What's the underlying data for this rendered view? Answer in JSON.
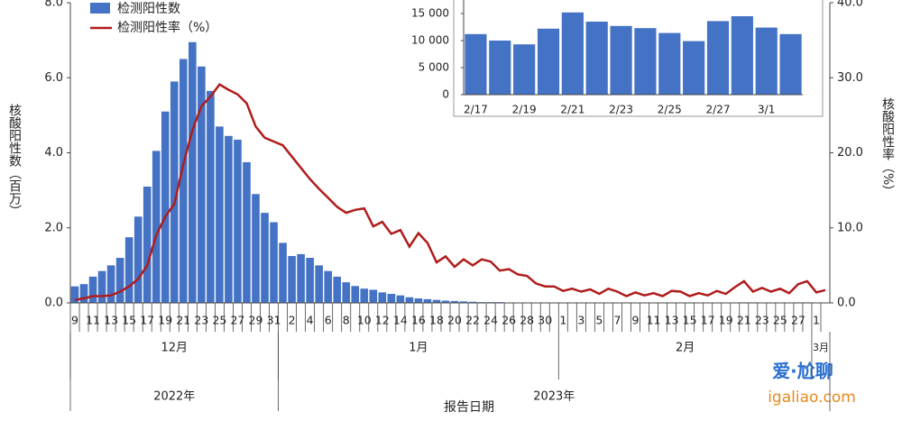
{
  "chart_data": [
    {
      "type": "combo",
      "legend": "top-left",
      "xlabel": "报告日期",
      "ylabel": "核酸阳性数（百万）",
      "y2label": "核酸阳性率（%）",
      "x_groups": [
        "12月",
        "1月",
        "2月",
        "3月"
      ],
      "x_years": [
        "2022年",
        "2023年"
      ],
      "categories": [
        "9",
        null,
        "11",
        null,
        "13",
        null,
        "15",
        null,
        "17",
        null,
        "19",
        null,
        "21",
        null,
        "23",
        null,
        "25",
        null,
        "27",
        null,
        "29",
        null,
        "31",
        null,
        "2",
        null,
        "4",
        null,
        "6",
        null,
        "8",
        null,
        "10",
        null,
        "12",
        null,
        "14",
        null,
        "16",
        null,
        "18",
        null,
        "20",
        null,
        "22",
        null,
        "24",
        null,
        "26",
        null,
        "28",
        null,
        "30",
        null,
        "1",
        null,
        "3",
        null,
        "5",
        null,
        "7",
        null,
        "9",
        null,
        "11",
        null,
        "13",
        null,
        "15",
        null,
        "17",
        null,
        "19",
        null,
        "21",
        null,
        "23",
        null,
        "25",
        null,
        "27",
        null,
        "1",
        null
      ],
      "series": [
        {
          "name": "检测阳性数",
          "color": "#4472c4",
          "values": [
            0.44,
            0.5,
            0.7,
            0.85,
            1.0,
            1.2,
            1.75,
            2.3,
            3.1,
            4.05,
            5.1,
            5.9,
            6.5,
            6.95,
            6.3,
            5.65,
            4.7,
            4.45,
            4.35,
            3.75,
            2.9,
            2.4,
            2.15,
            1.6,
            1.25,
            1.3,
            1.2,
            1.0,
            0.85,
            0.7,
            0.55,
            0.45,
            0.38,
            0.35,
            0.28,
            0.24,
            0.2,
            0.15,
            0.12,
            0.1,
            0.08,
            0.06,
            0.05,
            0.04,
            0.03,
            0.02,
            0.02,
            0.02,
            0.01,
            0.01,
            0.01,
            0.01,
            0.01,
            0.01,
            0.01,
            0.01,
            0.01,
            0.01,
            0.01,
            0.01,
            0.01,
            0.01,
            0.01,
            0.01,
            0.01,
            0.01,
            0.01,
            0.01,
            0.01,
            0.01,
            0.0112,
            0.01,
            0.0093,
            0.0122,
            0.0152,
            0.0135,
            0.0127,
            0.0123,
            0.0114,
            0.0099,
            0.0136,
            0.0145,
            0.0124,
            0.0112
          ]
        },
        {
          "name": "检测阳性率（%）",
          "color": "#b01c1c",
          "axis": "y2",
          "values": [
            0.4,
            0.6,
            0.9,
            0.9,
            1.0,
            1.5,
            2.2,
            3.2,
            5.0,
            9.0,
            11.5,
            13.2,
            18.5,
            23,
            26.2,
            27.5,
            29.1,
            28.4,
            27.8,
            26.6,
            23.5,
            22.0,
            21.5,
            21.0,
            19.5,
            18.0,
            16.5,
            15.2,
            14.0,
            12.8,
            12.0,
            12.4,
            12.6,
            10.2,
            10.8,
            9.2,
            9.7,
            7.5,
            9.3,
            8.0,
            5.4,
            6.2,
            4.8,
            5.8,
            5.0,
            5.8,
            5.5,
            4.3,
            4.5,
            3.8,
            3.6,
            2.6,
            2.2,
            2.2,
            1.6,
            1.9,
            1.5,
            1.8,
            1.2,
            1.9,
            1.5,
            0.9,
            1.4,
            1.0,
            1.3,
            0.9,
            1.6,
            1.5,
            0.9,
            1.3,
            1.0,
            1.6,
            1.2,
            2.1,
            2.9,
            1.5,
            2.0,
            1.5,
            1.9,
            1.3,
            2.5,
            2.9,
            1.4,
            1.7
          ]
        }
      ],
      "ylim": [
        0,
        8
      ],
      "yticks": [
        {
          "value": 0,
          "label": "0.0"
        },
        {
          "value": 2,
          "label": "2.0"
        },
        {
          "value": 4,
          "label": "4.0"
        },
        {
          "value": 6,
          "label": "6.0"
        },
        {
          "value": 8,
          "label": "8.0"
        }
      ],
      "y2lim": [
        0,
        40
      ],
      "y2ticks": [
        {
          "value": 0,
          "label": "0.0"
        },
        {
          "value": 10,
          "label": "10.0"
        },
        {
          "value": 20,
          "label": "20.0"
        },
        {
          "value": 30,
          "label": "30.0"
        },
        {
          "value": 40,
          "label": "40.0"
        }
      ]
    },
    {
      "type": "bar",
      "categories": [
        "2/17",
        null,
        "2/19",
        null,
        "2/21",
        null,
        "2/23",
        null,
        "2/25",
        null,
        "2/27",
        null,
        "3/1",
        null
      ],
      "values": [
        11200,
        10000,
        9300,
        12200,
        15200,
        13500,
        12700,
        12300,
        11400,
        9900,
        13600,
        14500,
        12400,
        11200
      ],
      "color": "#4472c4",
      "ylim": [
        0,
        17500
      ],
      "yticks": [
        0,
        {
          "value": 5000,
          "label": "5 000"
        },
        {
          "value": 10000,
          "label": "10 000"
        },
        {
          "value": 15000,
          "label": "15 000"
        }
      ]
    }
  ],
  "watermark": {
    "title": "爱·尬聊",
    "url": "igaliao.com"
  }
}
